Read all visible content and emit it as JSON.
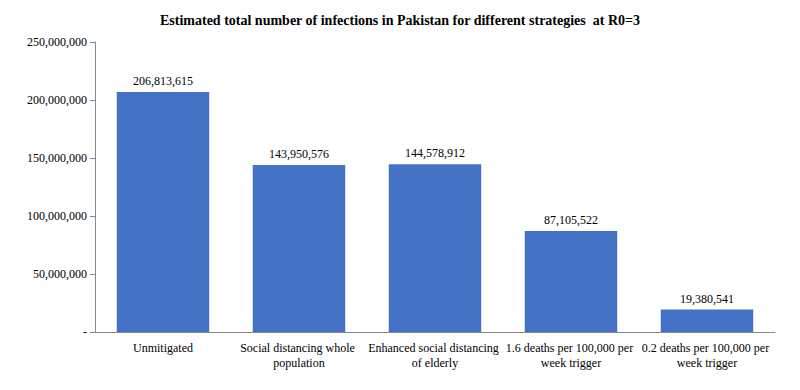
{
  "chart_data": {
    "type": "bar",
    "title": "Estimated total number of infections in Pakistan for different strategies  at R0=3",
    "categories": [
      "Unmitigated",
      "Social distancing whole population",
      "Enhanced social distancing of elderly",
      "1.6 deaths per 100,000 per week trigger",
      "0.2 deaths per 100,000 per week trigger"
    ],
    "values": [
      206813615,
      143950576,
      144578912,
      87105522,
      19380541
    ],
    "value_labels": [
      "206,813,615",
      "143,950,576",
      "144,578,912",
      "87,105,522",
      "19,380,541"
    ],
    "color": "#4472c4",
    "ylim": [
      0,
      250000000
    ],
    "yticks": [
      {
        "value": 0,
        "label": "-"
      },
      {
        "value": 50000000,
        "label": "50,000,000"
      },
      {
        "value": 100000000,
        "label": "100,000,000"
      },
      {
        "value": 150000000,
        "label": "150,000,000"
      },
      {
        "value": 200000000,
        "label": "200,000,000"
      },
      {
        "value": 250000000,
        "label": "250,000,000"
      }
    ],
    "grid": false,
    "data_labels": true
  }
}
